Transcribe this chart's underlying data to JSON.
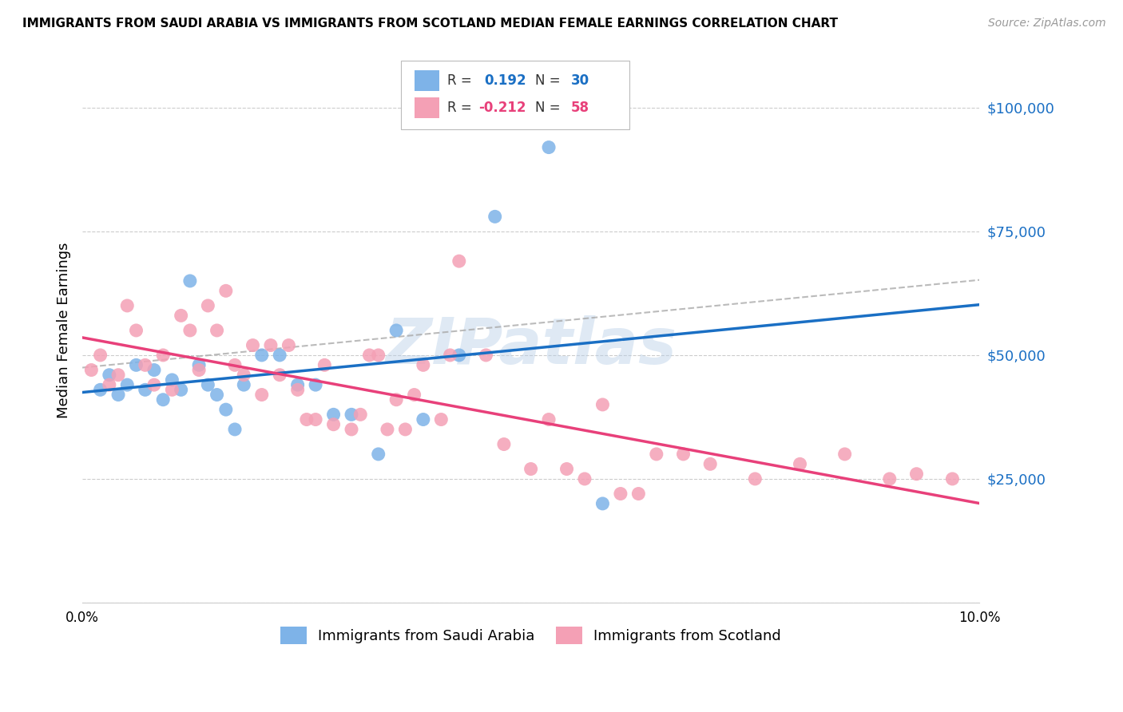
{
  "title": "IMMIGRANTS FROM SAUDI ARABIA VS IMMIGRANTS FROM SCOTLAND MEDIAN FEMALE EARNINGS CORRELATION CHART",
  "source": "Source: ZipAtlas.com",
  "ylabel": "Median Female Earnings",
  "yticks": [
    0,
    25000,
    50000,
    75000,
    100000
  ],
  "ytick_labels": [
    "",
    "$25,000",
    "$50,000",
    "$75,000",
    "$100,000"
  ],
  "xlim": [
    0.0,
    0.1
  ],
  "ylim": [
    0,
    110000
  ],
  "saudi_R": 0.192,
  "saudi_N": 30,
  "scotland_R": -0.212,
  "scotland_N": 58,
  "saudi_color": "#7eb3e8",
  "scotland_color": "#f4a0b5",
  "saudi_line_color": "#1a6fc4",
  "scotland_line_color": "#e8407a",
  "trend_line_color": "#aaaaaa",
  "background_color": "#ffffff",
  "grid_color": "#cccccc",
  "watermark": "ZIPatlas",
  "saudi_points_x": [
    0.002,
    0.003,
    0.004,
    0.005,
    0.006,
    0.007,
    0.008,
    0.009,
    0.01,
    0.011,
    0.012,
    0.013,
    0.014,
    0.015,
    0.016,
    0.017,
    0.018,
    0.02,
    0.022,
    0.024,
    0.026,
    0.028,
    0.03,
    0.033,
    0.035,
    0.038,
    0.042,
    0.046,
    0.052,
    0.058
  ],
  "saudi_points_y": [
    43000,
    46000,
    42000,
    44000,
    48000,
    43000,
    47000,
    41000,
    45000,
    43000,
    65000,
    48000,
    44000,
    42000,
    39000,
    35000,
    44000,
    50000,
    50000,
    44000,
    44000,
    38000,
    38000,
    30000,
    55000,
    37000,
    50000,
    78000,
    92000,
    20000
  ],
  "scotland_points_x": [
    0.001,
    0.002,
    0.003,
    0.004,
    0.005,
    0.006,
    0.007,
    0.008,
    0.009,
    0.01,
    0.011,
    0.012,
    0.013,
    0.014,
    0.015,
    0.016,
    0.017,
    0.018,
    0.019,
    0.02,
    0.021,
    0.022,
    0.023,
    0.024,
    0.025,
    0.026,
    0.027,
    0.028,
    0.03,
    0.031,
    0.032,
    0.033,
    0.034,
    0.035,
    0.036,
    0.037,
    0.038,
    0.04,
    0.041,
    0.042,
    0.045,
    0.047,
    0.05,
    0.052,
    0.054,
    0.056,
    0.058,
    0.06,
    0.062,
    0.064,
    0.067,
    0.07,
    0.075,
    0.08,
    0.085,
    0.09,
    0.093,
    0.097
  ],
  "scotland_points_y": [
    47000,
    50000,
    44000,
    46000,
    60000,
    55000,
    48000,
    44000,
    50000,
    43000,
    58000,
    55000,
    47000,
    60000,
    55000,
    63000,
    48000,
    46000,
    52000,
    42000,
    52000,
    46000,
    52000,
    43000,
    37000,
    37000,
    48000,
    36000,
    35000,
    38000,
    50000,
    50000,
    35000,
    41000,
    35000,
    42000,
    48000,
    37000,
    50000,
    69000,
    50000,
    32000,
    27000,
    37000,
    27000,
    25000,
    40000,
    22000,
    22000,
    30000,
    30000,
    28000,
    25000,
    28000,
    30000,
    25000,
    26000,
    25000
  ]
}
